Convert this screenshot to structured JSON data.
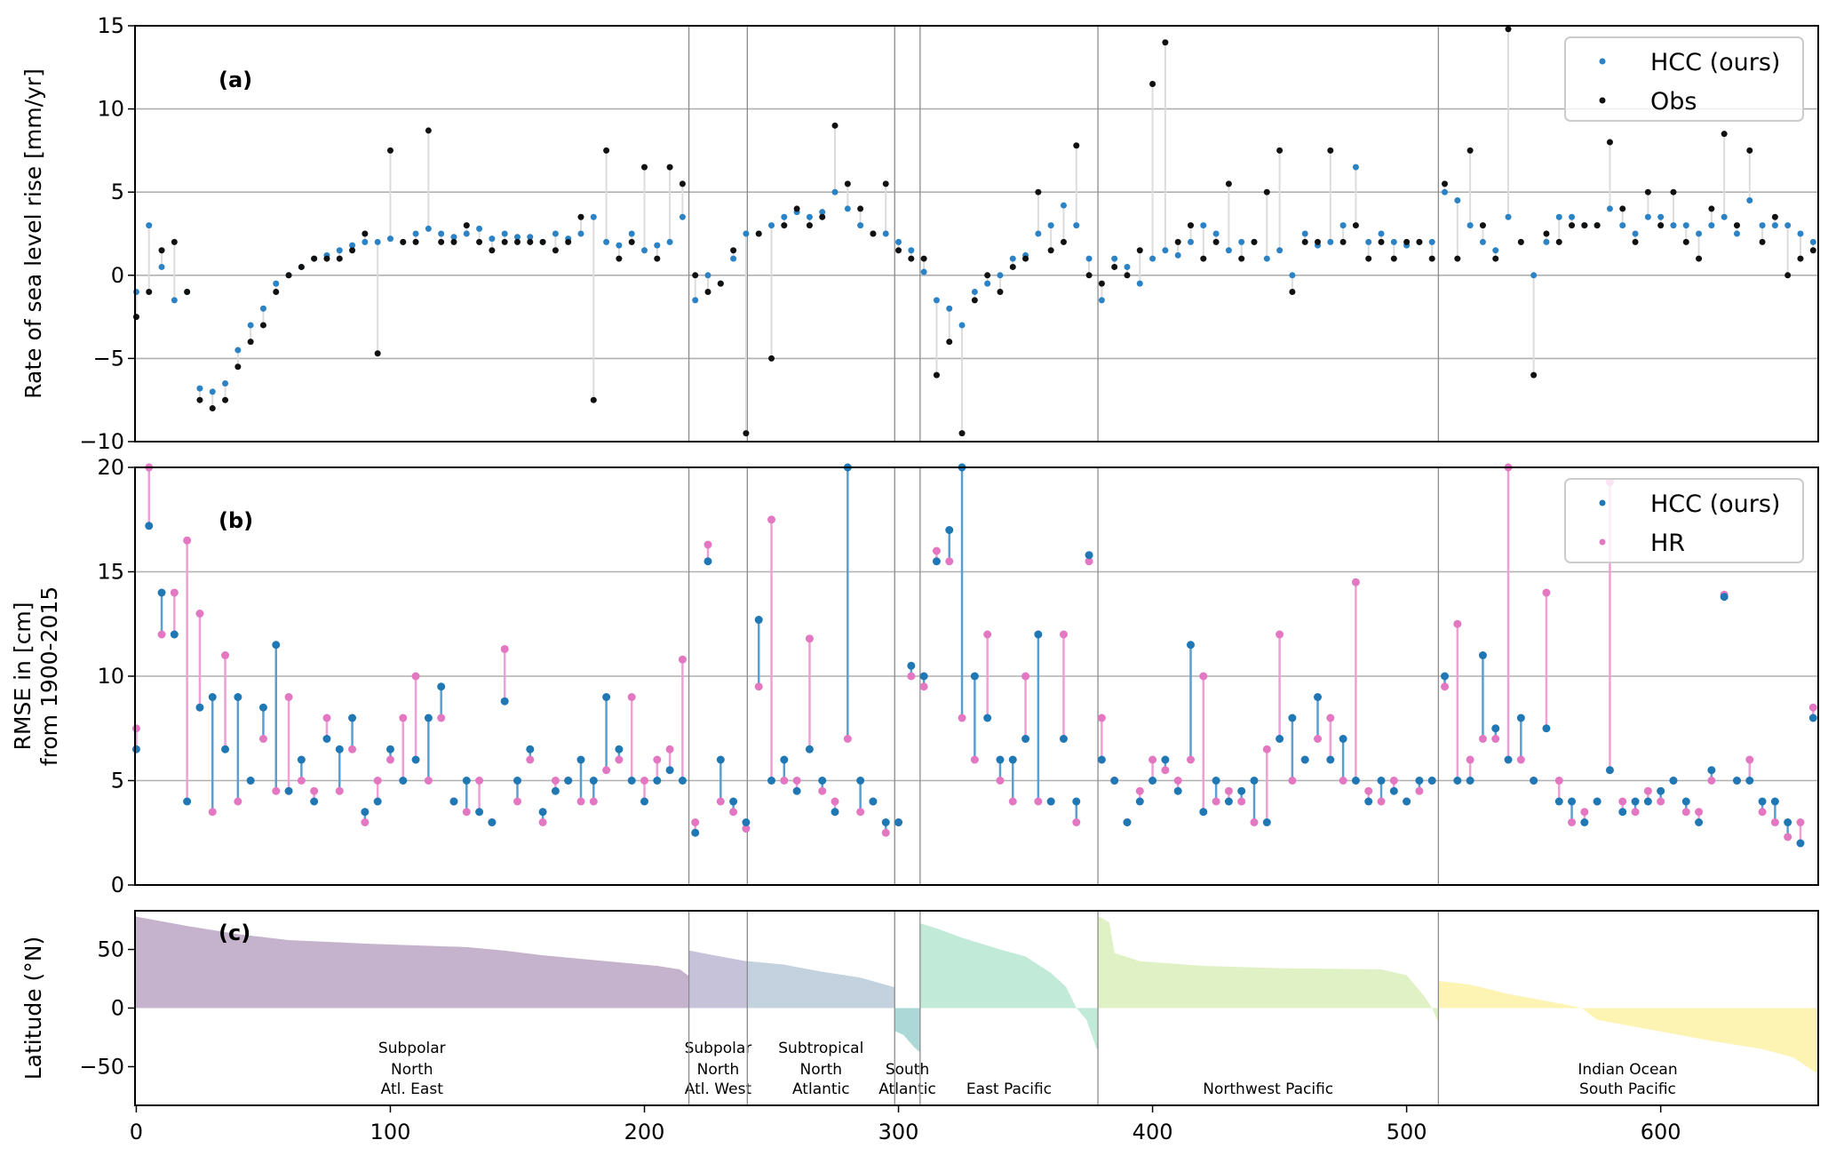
{
  "chart_data": [
    {
      "panel": "(a)",
      "type": "scatter",
      "ylabel": "Rate of sea level rise [mm/yr]",
      "ylim": [
        -10,
        15
      ],
      "yticks": [
        -10,
        -5,
        0,
        5,
        10,
        15
      ],
      "xlim": [
        -0.5,
        662
      ],
      "grid": true,
      "legend_position": "top-right",
      "x_step": 5,
      "x_start": 0,
      "series": [
        {
          "name": "HCC (ours)",
          "color": "#2b83c6",
          "values": [
            -1,
            3,
            0.5,
            -1.5,
            -1,
            -6.8,
            -7,
            -6.5,
            -4.5,
            -3,
            -2,
            -0.5,
            0,
            0.5,
            1,
            1.2,
            1.5,
            1.8,
            2,
            2,
            2.2,
            2,
            2.5,
            2.8,
            2.5,
            2.3,
            2.5,
            2.8,
            2.2,
            2.5,
            2.3,
            2.3,
            2,
            2.5,
            2.2,
            2.5,
            3.5,
            2,
            1.8,
            2.5,
            1.5,
            1.8,
            2,
            3.5,
            -1.5,
            0,
            -0.5,
            1,
            2.5,
            2.5,
            3,
            3.5,
            3.8,
            3.5,
            3.8,
            5,
            4,
            3,
            2.5,
            2.5,
            2,
            1.5,
            0.2,
            -1.5,
            -2,
            -3,
            -1,
            -0.5,
            0,
            1,
            1.2,
            2.5,
            3,
            4.2,
            3,
            1,
            -1.5,
            1,
            0.5,
            -0.5,
            1,
            1.5,
            1.2,
            2,
            3,
            2.5,
            1.5,
            2,
            2,
            1,
            1.5,
            0,
            2.5,
            1.8,
            2,
            3,
            6.5,
            2,
            2.5,
            2,
            1.8,
            2,
            2,
            5,
            4.5,
            3,
            2,
            1.5,
            3.5,
            2,
            0,
            2,
            3.5,
            3.5,
            3,
            3,
            4,
            3,
            2.5,
            3.5,
            3.5,
            3,
            3,
            2.5,
            3,
            3.5,
            2.5,
            4.5,
            3,
            3,
            3,
            2.5,
            2
          ]
        },
        {
          "name": "Obs",
          "color": "#111111",
          "values": [
            -2.5,
            -1,
            1.5,
            2,
            -1,
            -7.5,
            -8,
            -7.5,
            -5.5,
            -4,
            -3,
            -1,
            0,
            0.5,
            1,
            1,
            1,
            1.5,
            2.5,
            -4.7,
            7.5,
            2,
            2,
            8.7,
            2,
            2,
            3,
            2,
            1.5,
            2,
            2,
            2,
            2,
            1.5,
            2,
            3.5,
            -7.5,
            7.5,
            1,
            2,
            6.5,
            1,
            6.5,
            5.5,
            0,
            -1,
            -0.5,
            1.5,
            -9.5,
            2.5,
            -5,
            3,
            4,
            3,
            3.5,
            9,
            5.5,
            4,
            2.5,
            5.5,
            1.5,
            1,
            1,
            -6,
            -4,
            -9.5,
            -1.5,
            0,
            -1,
            0.5,
            1,
            5,
            1.5,
            2,
            7.8,
            0,
            -0.5,
            0.5,
            0,
            1.5,
            11.5,
            14,
            2,
            3,
            1,
            2,
            5.5,
            1,
            2,
            5,
            7.5,
            -1,
            2,
            2,
            7.5,
            2,
            3,
            1,
            2,
            1,
            2,
            2,
            1,
            5.5,
            1,
            7.5,
            3,
            1,
            14.8,
            2,
            -6,
            2.5,
            2,
            3,
            3,
            3,
            8,
            4,
            2,
            5,
            3,
            5,
            2,
            1,
            4,
            8.5,
            3,
            7.5,
            2,
            3.5,
            0,
            1,
            1.5
          ]
        }
      ]
    },
    {
      "panel": "(b)",
      "type": "scatter",
      "ylabel": [
        "RMSE in [cm]",
        "from 1900-2015"
      ],
      "ylim": [
        0,
        20
      ],
      "yticks": [
        0,
        5,
        10,
        15,
        20
      ],
      "xlim": [
        -0.5,
        662
      ],
      "grid": true,
      "legend_position": "top-right",
      "x_step": 5,
      "x_start": 0,
      "series": [
        {
          "name": "HCC (ours)",
          "color": "#1f77b4",
          "values": [
            6.5,
            17.2,
            14,
            12,
            4,
            8.5,
            9,
            6.5,
            9,
            5,
            8.5,
            11.5,
            4.5,
            6,
            4,
            7,
            6.5,
            8,
            3.5,
            4,
            6.5,
            5,
            6,
            8,
            9.5,
            4,
            5,
            3.5,
            3,
            8.8,
            5,
            6.5,
            3.5,
            4.5,
            5,
            6,
            5,
            9,
            6.5,
            5,
            4,
            5,
            5.5,
            5,
            2.5,
            15.5,
            6,
            4,
            3,
            12.7,
            5,
            6,
            4.5,
            6.5,
            5,
            3.5,
            20,
            5,
            4,
            3,
            3,
            10.5,
            10,
            15.5,
            17,
            20,
            10,
            8,
            6,
            6,
            7,
            12,
            4,
            7,
            4,
            15.8,
            6,
            5,
            3,
            4,
            5,
            6,
            4.5,
            11.5,
            3.5,
            5,
            4,
            4.5,
            5,
            3,
            7,
            8,
            6,
            9,
            6,
            7,
            5,
            4,
            5,
            4.5,
            4,
            5,
            5,
            10,
            5,
            5,
            11,
            7.5,
            6,
            8,
            5,
            7.5,
            4,
            4,
            3,
            4,
            5.5,
            3.5,
            4,
            4,
            4.5,
            5,
            4,
            3,
            5.5,
            13.8,
            5,
            5,
            4,
            4,
            3,
            2,
            8
          ]
        },
        {
          "name": "HR",
          "color": "#e377c2",
          "values": [
            7.5,
            20,
            12,
            14,
            16.5,
            13,
            3.5,
            11,
            4,
            5,
            7,
            4.5,
            9,
            5,
            4.5,
            8,
            4.5,
            6.5,
            3,
            5,
            6,
            8,
            10,
            5,
            8,
            4,
            3.5,
            5,
            3,
            11.3,
            4,
            6,
            3,
            5,
            5,
            4,
            4,
            5.5,
            6,
            9,
            5,
            6,
            6.5,
            10.8,
            3,
            16.3,
            4,
            3.5,
            2.7,
            9.5,
            17.5,
            5,
            5,
            11.8,
            4.5,
            4,
            7,
            3.5,
            4,
            2.5,
            3,
            10,
            9.5,
            16,
            15.5,
            8,
            6,
            12,
            5,
            4,
            10,
            4,
            4,
            12,
            3,
            15.5,
            8,
            5,
            3,
            4.5,
            6,
            5.5,
            5,
            6,
            10,
            4,
            4.5,
            4,
            3,
            6.5,
            12,
            5,
            6,
            7,
            8,
            5,
            14.5,
            4.5,
            4,
            5,
            4,
            4.5,
            5,
            9.5,
            12.5,
            6,
            7,
            7,
            20,
            6,
            5,
            14,
            5,
            3,
            3.5,
            4,
            19.3,
            4,
            3.5,
            4.5,
            4,
            5,
            3.5,
            3.5,
            5,
            13.9,
            5,
            6,
            3.5,
            3,
            2.3,
            3,
            8.5
          ]
        }
      ]
    },
    {
      "panel": "(c)",
      "type": "area",
      "ylabel": "Latitude (°N)",
      "ylim": [
        -83,
        83
      ],
      "yticks": [
        -50,
        0,
        50
      ],
      "xlim": [
        -0.5,
        662
      ],
      "xticks": [
        0,
        100,
        200,
        300,
        400,
        500,
        600
      ],
      "grid": false,
      "regions": [
        {
          "label": [
            "Subpolar",
            "North",
            "Atl. East"
          ],
          "start": 0,
          "end": 217,
          "color": "#c5b2cc",
          "lat_profile": [
            [
              0,
              78
            ],
            [
              5,
              76
            ],
            [
              20,
              70
            ],
            [
              40,
              63
            ],
            [
              60,
              58
            ],
            [
              90,
              55
            ],
            [
              130,
              52
            ],
            [
              145,
              49
            ],
            [
              160,
              45
            ],
            [
              185,
              40
            ],
            [
              205,
              36
            ],
            [
              214,
              33
            ],
            [
              217,
              28
            ]
          ]
        },
        {
          "label": [
            "Subpolar",
            "North",
            "Atl. West"
          ],
          "start": 218,
          "end": 240,
          "color": "#c6c2da",
          "lat_profile": [
            [
              218,
              49
            ],
            [
              225,
              46
            ],
            [
              235,
              42
            ],
            [
              240,
              40
            ]
          ]
        },
        {
          "label": [
            "Subtropical",
            "North",
            "Atlantic"
          ],
          "start": 241,
          "end": 298,
          "color": "#c3d2de",
          "lat_profile": [
            [
              241,
              40
            ],
            [
              255,
              37
            ],
            [
              270,
              31
            ],
            [
              285,
              26
            ],
            [
              293,
              21
            ],
            [
              298,
              18
            ]
          ]
        },
        {
          "label": [
            "South",
            "Atlantic"
          ],
          "start": 299,
          "end": 308,
          "color": "#add8d8",
          "lat_profile": [
            [
              299,
              -20
            ],
            [
              302,
              -23
            ],
            [
              306,
              -33
            ],
            [
              308,
              -37
            ]
          ]
        },
        {
          "label": [
            "East Pacific"
          ],
          "start": 309,
          "end": 378,
          "color": "#c2ead9",
          "lat_profile": [
            [
              309,
              72
            ],
            [
              315,
              68
            ],
            [
              325,
              60
            ],
            [
              340,
              50
            ],
            [
              350,
              44
            ],
            [
              360,
              30
            ],
            [
              366,
              18
            ],
            [
              370,
              0
            ],
            [
              374,
              -10
            ],
            [
              378,
              -35
            ]
          ]
        },
        {
          "label": [
            "Northwest Pacific"
          ],
          "start": 379,
          "end": 512,
          "color": "#e0f2c5",
          "lat_profile": [
            [
              379,
              78
            ],
            [
              383,
              73
            ],
            [
              385,
              47
            ],
            [
              395,
              40
            ],
            [
              420,
              36
            ],
            [
              450,
              34
            ],
            [
              490,
              33
            ],
            [
              500,
              28
            ],
            [
              507,
              10
            ],
            [
              510,
              0
            ],
            [
              512,
              -10
            ]
          ]
        },
        {
          "label": [
            "Indian Ocean",
            "South Pacific"
          ],
          "start": 513,
          "end": 661,
          "color": "#fdf3b2",
          "lat_profile": [
            [
              513,
              23
            ],
            [
              525,
              20
            ],
            [
              540,
              12
            ],
            [
              560,
              4
            ],
            [
              569,
              0
            ],
            [
              575,
              -10
            ],
            [
              600,
              -20
            ],
            [
              620,
              -28
            ],
            [
              640,
              -35
            ],
            [
              652,
              -42
            ],
            [
              661,
              -55
            ]
          ]
        }
      ]
    }
  ]
}
